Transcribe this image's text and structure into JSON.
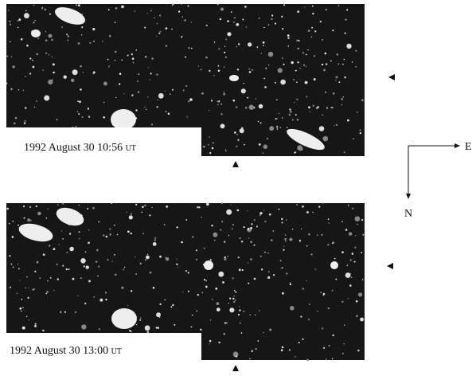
{
  "panels": [
    {
      "date": "1992 August 30 10:56",
      "unit": "UT"
    },
    {
      "date": "1992 August 30 13:00",
      "unit": "UT"
    }
  ],
  "compass": {
    "east": "E",
    "north": "N"
  }
}
